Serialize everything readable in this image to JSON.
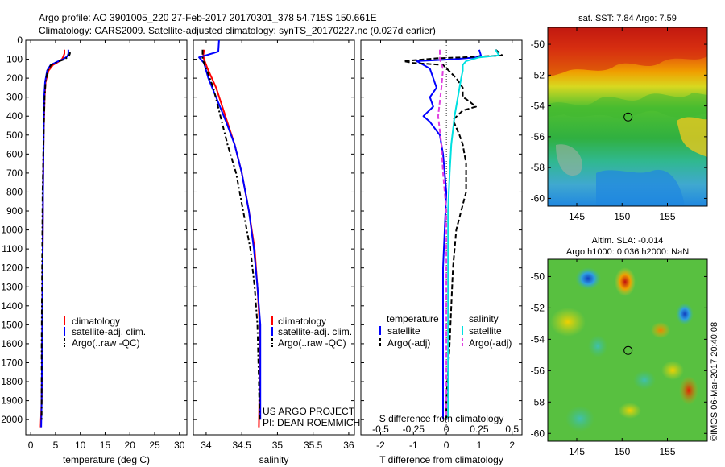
{
  "header": {
    "line1": "Argo profile: AO 3901005_220 27-Feb-2017 20170301_378 54.715S 150.661E",
    "line2": "Climatology: CARS2009. Satellite-adjusted climatology: synTS_20170227.nc (0.027d earlier)"
  },
  "chart_data": [
    {
      "type": "line",
      "id": "temperature",
      "xlabel": "temperature (deg C)",
      "xlim": [
        -1,
        31.5
      ],
      "ylim": [
        2080,
        0
      ],
      "yreversed": true,
      "xticks": [
        0,
        5,
        10,
        15,
        20,
        25,
        30
      ],
      "yticks": [
        0,
        100,
        200,
        300,
        400,
        500,
        600,
        700,
        800,
        900,
        1000,
        1100,
        1200,
        1300,
        1400,
        1500,
        1600,
        1700,
        1800,
        1900,
        2000
      ],
      "legend": [
        "climatology",
        "satellite-adj. clim.",
        "Argo(..raw -QC)"
      ],
      "series": [
        {
          "name": "climatology",
          "color": "#ff0000",
          "style": "solid",
          "x": [
            6.8,
            6.8,
            6.6,
            6.3,
            5.5,
            4.5,
            3.6,
            3.0,
            2.8,
            2.6,
            2.5,
            2.4,
            2.3,
            2.2,
            2.0
          ],
          "y": [
            50,
            70,
            85,
            100,
            115,
            130,
            160,
            220,
            300,
            500,
            800,
            1200,
            1600,
            1900,
            2040
          ]
        },
        {
          "name": "satellite-adj. clim.",
          "color": "#0000ff",
          "style": "solid",
          "x": [
            7.6,
            7.6,
            7.4,
            6.5,
            5.2,
            4.0,
            3.3,
            2.9,
            2.7,
            2.6,
            2.5,
            2.4,
            2.3,
            2.2,
            2.1
          ],
          "y": [
            50,
            70,
            85,
            100,
            115,
            130,
            160,
            220,
            300,
            500,
            800,
            1200,
            1600,
            1900,
            2040
          ]
        },
        {
          "name": "Argo(..raw -QC)",
          "color": "#000000",
          "style": "dashdot",
          "x": [
            7.9,
            7.9,
            7.7,
            6.8,
            5.3,
            4.1,
            3.4,
            3.0,
            2.8,
            2.6,
            2.4,
            2.3,
            2.2,
            2.2,
            2.2
          ],
          "y": [
            60,
            70,
            85,
            100,
            115,
            130,
            160,
            220,
            300,
            500,
            800,
            1200,
            1600,
            1900,
            2000
          ]
        }
      ]
    },
    {
      "type": "line",
      "id": "salinity",
      "xlabel": "salinity",
      "xlim": [
        33.82,
        36.08
      ],
      "ylim": [
        2080,
        0
      ],
      "yreversed": true,
      "xticks": [
        34,
        34.5,
        35,
        35.5,
        36
      ],
      "legend": [
        "climatology",
        "satellite-adj. clim.",
        "Argo(..raw -QC)"
      ],
      "series": [
        {
          "name": "climatology",
          "color": "#ff0000",
          "style": "solid",
          "x": [
            33.97,
            33.96,
            33.97,
            34.02,
            34.14,
            34.27,
            34.4,
            34.5,
            34.6,
            34.68,
            34.72,
            34.75,
            34.75,
            34.74
          ],
          "y": [
            50,
            80,
            100,
            150,
            250,
            400,
            550,
            700,
            900,
            1100,
            1300,
            1500,
            1800,
            2040
          ]
        },
        {
          "name": "satellite-adj. clim.",
          "color": "#0000ff",
          "style": "solid",
          "x": [
            34.18,
            34.17,
            33.9,
            33.97,
            34.03,
            34.14,
            34.28,
            34.4,
            34.5,
            34.6,
            34.67,
            34.72,
            34.76,
            34.76,
            34.76
          ],
          "y": [
            0,
            60,
            90,
            120,
            200,
            300,
            430,
            550,
            700,
            900,
            1100,
            1300,
            1500,
            1800,
            2000
          ]
        },
        {
          "name": "Argo(..raw -QC)",
          "color": "#000000",
          "style": "dashdot",
          "x": [
            33.95,
            33.95,
            33.95,
            34.0,
            34.1,
            34.2,
            34.3,
            34.42,
            34.52,
            34.62,
            34.68,
            34.72,
            34.74,
            34.75
          ],
          "y": [
            50,
            80,
            100,
            150,
            250,
            400,
            550,
            700,
            900,
            1100,
            1300,
            1500,
            1800,
            2000
          ]
        }
      ]
    },
    {
      "type": "line",
      "id": "differences",
      "xlabel": "T difference from climatology",
      "xlabel2": "S difference from climatology",
      "xlim": [
        -2.6,
        2.3
      ],
      "ylim": [
        2080,
        0
      ],
      "yreversed": true,
      "xticks": [
        -2,
        -1,
        0,
        1,
        2
      ],
      "xticks2": [
        "-0.5",
        "-0.25",
        "0",
        "0.25",
        "0.5"
      ],
      "legend_headers": [
        "temperature",
        "salinity"
      ],
      "legend": [
        "satellite",
        "Argo(-adj)",
        "satellite",
        "Argo(-adj)"
      ],
      "series": [
        {
          "name": "satellite",
          "group": "temperature",
          "color": "#0000ff",
          "style": "solid",
          "x": [
            1.0,
            1.05,
            0.9,
            0.2,
            -0.9,
            -0.5,
            -0.4,
            -0.3,
            -0.5,
            -0.4,
            -0.7,
            -0.5,
            -0.2,
            -0.1,
            0.0,
            -0.1,
            -0.1,
            -0.1,
            -0.1
          ],
          "y": [
            50,
            80,
            90,
            100,
            110,
            150,
            200,
            250,
            300,
            350,
            400,
            430,
            500,
            600,
            800,
            1200,
            1600,
            1900,
            2000
          ]
        },
        {
          "name": "Argo(-adj)",
          "group": "temperature",
          "color": "#000000",
          "style": "dashed",
          "x": [
            1.5,
            1.7,
            0.5,
            -0.3,
            -1.3,
            -1.0,
            -0.1,
            0.3,
            0.5,
            0.5,
            0.6,
            0.9,
            0.5,
            0.2,
            0.4,
            0.5,
            0.6,
            0.6,
            0.3,
            0.2,
            0.1,
            0.0,
            0.0
          ],
          "y": [
            50,
            80,
            90,
            95,
            110,
            120,
            130,
            200,
            250,
            300,
            310,
            350,
            370,
            420,
            500,
            550,
            650,
            800,
            1000,
            1200,
            1600,
            1900,
            2000
          ]
        },
        {
          "name": "satellite",
          "group": "salinity",
          "color": "#00e0e0",
          "style": "solid",
          "x": [
            1.5,
            1.6,
            1.0,
            0.6,
            0.5,
            0.5,
            0.45,
            0.35,
            0.25,
            0.15,
            0.1,
            0.05,
            0.05,
            0.05,
            0.05
          ],
          "y": [
            50,
            80,
            90,
            110,
            130,
            160,
            200,
            300,
            400,
            550,
            700,
            900,
            1200,
            1600,
            2000
          ]
        },
        {
          "name": "Argo(-adj)",
          "group": "salinity",
          "color": "#e040e0",
          "style": "dashed",
          "x": [
            -0.2,
            -0.2,
            -0.1,
            -0.15,
            -0.25,
            -0.15,
            -0.1,
            0.0,
            0.0,
            0.0,
            0.0
          ],
          "y": [
            50,
            100,
            150,
            250,
            400,
            550,
            700,
            900,
            1200,
            1600,
            2000
          ]
        }
      ]
    },
    {
      "type": "heatmap",
      "id": "sst-map",
      "title": "sat. SST: 7.84 Argo: 7.59",
      "xlim": [
        141.8,
        159.4
      ],
      "ylim": [
        -60.5,
        -48.9
      ],
      "xticks": [
        145,
        150,
        155
      ],
      "yticks": [
        -50,
        -52,
        -54,
        -56,
        -58,
        -60
      ],
      "marker": {
        "lon": 150.661,
        "lat": -54.715
      }
    },
    {
      "type": "heatmap",
      "id": "sla-map",
      "title": "Altim. SLA: -0.014",
      "subtitle": "Argo h1000: 0.036 h2000: NaN",
      "xlim": [
        141.8,
        159.4
      ],
      "ylim": [
        -60.5,
        -48.9
      ],
      "xticks": [
        145,
        150,
        155
      ],
      "yticks": [
        -50,
        -52,
        -54,
        -56,
        -58,
        -60
      ],
      "marker": {
        "lon": 150.661,
        "lat": -54.715
      }
    }
  ],
  "credits": {
    "project": "US ARGO PROJECT",
    "pi": "PI: DEAN ROEMMICH",
    "watermark": "©IMOS 06-Mar-2017 20:40:08"
  }
}
